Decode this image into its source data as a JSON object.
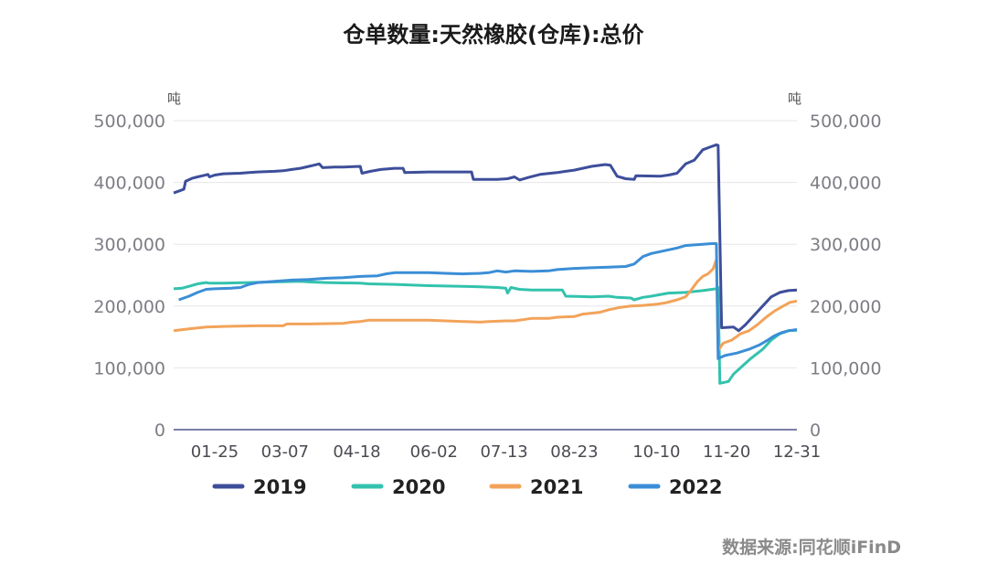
{
  "chart_data": {
    "type": "line",
    "title": "仓单数量:天然橡胶(仓库):总价",
    "unit_left": "吨",
    "unit_right": "吨",
    "ylim": [
      0,
      500000
    ],
    "y_ticks": [
      "0",
      "100,000",
      "200,000",
      "300,000",
      "400,000",
      "500,000"
    ],
    "y_tick_values": [
      0,
      100000,
      200000,
      300000,
      400000,
      500000
    ],
    "x_range": [
      1,
      365
    ],
    "x_ticks": [
      "01-25",
      "03-07",
      "04-18",
      "06-02",
      "07-13",
      "08-23",
      "10-10",
      "11-20",
      "12-31"
    ],
    "x_tick_days": [
      25,
      66,
      108,
      153,
      194,
      235,
      283,
      324,
      365
    ],
    "grid": true,
    "legend_position": "bottom",
    "series": [
      {
        "name": "2019",
        "color": "#3d4e9a",
        "points": [
          [
            1,
            383000
          ],
          [
            4,
            386000
          ],
          [
            7,
            389000
          ],
          [
            8,
            402000
          ],
          [
            12,
            407000
          ],
          [
            15,
            409000
          ],
          [
            18,
            411000
          ],
          [
            21,
            413000
          ],
          [
            22,
            409000
          ],
          [
            25,
            412000
          ],
          [
            30,
            414000
          ],
          [
            40,
            415000
          ],
          [
            45,
            416000
          ],
          [
            50,
            417000
          ],
          [
            60,
            418000
          ],
          [
            65,
            419000
          ],
          [
            70,
            421000
          ],
          [
            75,
            423000
          ],
          [
            80,
            426000
          ],
          [
            83,
            428000
          ],
          [
            86,
            430000
          ],
          [
            88,
            424000
          ],
          [
            95,
            425000
          ],
          [
            100,
            425000
          ],
          [
            110,
            426000
          ],
          [
            111,
            415000
          ],
          [
            116,
            418000
          ],
          [
            122,
            421000
          ],
          [
            130,
            423000
          ],
          [
            135,
            423000
          ],
          [
            136,
            416000
          ],
          [
            150,
            417000
          ],
          [
            175,
            417000
          ],
          [
            176,
            405000
          ],
          [
            190,
            405000
          ],
          [
            196,
            406000
          ],
          [
            200,
            409000
          ],
          [
            203,
            404000
          ],
          [
            208,
            408000
          ],
          [
            215,
            413000
          ],
          [
            225,
            416000
          ],
          [
            230,
            418000
          ],
          [
            235,
            420000
          ],
          [
            245,
            426000
          ],
          [
            253,
            429000
          ],
          [
            256,
            428000
          ],
          [
            260,
            410000
          ],
          [
            265,
            406000
          ],
          [
            270,
            405000
          ],
          [
            271,
            411000
          ],
          [
            285,
            410000
          ],
          [
            290,
            412000
          ],
          [
            295,
            415000
          ],
          [
            300,
            430000
          ],
          [
            305,
            436000
          ],
          [
            310,
            453000
          ],
          [
            315,
            458000
          ],
          [
            318,
            461000
          ],
          [
            319,
            460000
          ],
          [
            321,
            165000
          ],
          [
            328,
            166000
          ],
          [
            331,
            160000
          ],
          [
            335,
            170000
          ],
          [
            340,
            185000
          ],
          [
            345,
            200000
          ],
          [
            350,
            215000
          ],
          [
            355,
            222000
          ],
          [
            360,
            225000
          ],
          [
            365,
            226000
          ]
        ]
      },
      {
        "name": "2020",
        "color": "#33c2ad",
        "points": [
          [
            1,
            228000
          ],
          [
            6,
            229000
          ],
          [
            10,
            232000
          ],
          [
            15,
            236000
          ],
          [
            20,
            238000
          ],
          [
            22,
            237000
          ],
          [
            30,
            237000
          ],
          [
            45,
            238000
          ],
          [
            60,
            239000
          ],
          [
            75,
            240000
          ],
          [
            80,
            239000
          ],
          [
            90,
            238000
          ],
          [
            110,
            237000
          ],
          [
            115,
            236000
          ],
          [
            130,
            235000
          ],
          [
            150,
            233000
          ],
          [
            170,
            232000
          ],
          [
            180,
            231000
          ],
          [
            190,
            230000
          ],
          [
            195,
            229000
          ],
          [
            196,
            221000
          ],
          [
            198,
            230000
          ],
          [
            203,
            227000
          ],
          [
            210,
            226000
          ],
          [
            220,
            226000
          ],
          [
            228,
            226000
          ],
          [
            230,
            216000
          ],
          [
            245,
            215000
          ],
          [
            255,
            216000
          ],
          [
            260,
            214000
          ],
          [
            268,
            213000
          ],
          [
            270,
            210000
          ],
          [
            275,
            214000
          ],
          [
            280,
            216000
          ],
          [
            290,
            221000
          ],
          [
            300,
            222000
          ],
          [
            310,
            225000
          ],
          [
            318,
            228000
          ],
          [
            319,
            230000
          ],
          [
            320,
            75000
          ],
          [
            325,
            78000
          ],
          [
            328,
            90000
          ],
          [
            332,
            100000
          ],
          [
            338,
            115000
          ],
          [
            345,
            130000
          ],
          [
            350,
            145000
          ],
          [
            355,
            155000
          ],
          [
            360,
            160000
          ],
          [
            365,
            161000
          ]
        ]
      },
      {
        "name": "2021",
        "color": "#f2a35a",
        "points": [
          [
            1,
            160000
          ],
          [
            10,
            163000
          ],
          [
            20,
            166000
          ],
          [
            30,
            167000
          ],
          [
            50,
            168000
          ],
          [
            65,
            168000
          ],
          [
            67,
            171000
          ],
          [
            80,
            171000
          ],
          [
            100,
            172000
          ],
          [
            105,
            174000
          ],
          [
            110,
            175000
          ],
          [
            115,
            177000
          ],
          [
            130,
            177000
          ],
          [
            150,
            177000
          ],
          [
            160,
            176000
          ],
          [
            170,
            175000
          ],
          [
            180,
            174000
          ],
          [
            185,
            175000
          ],
          [
            195,
            176000
          ],
          [
            200,
            176000
          ],
          [
            205,
            178000
          ],
          [
            210,
            180000
          ],
          [
            220,
            180000
          ],
          [
            225,
            182000
          ],
          [
            235,
            183000
          ],
          [
            240,
            187000
          ],
          [
            250,
            190000
          ],
          [
            255,
            194000
          ],
          [
            262,
            198000
          ],
          [
            268,
            200000
          ],
          [
            275,
            201000
          ],
          [
            283,
            203000
          ],
          [
            288,
            205000
          ],
          [
            295,
            210000
          ],
          [
            300,
            215000
          ],
          [
            303,
            225000
          ],
          [
            307,
            240000
          ],
          [
            310,
            248000
          ],
          [
            313,
            252000
          ],
          [
            316,
            260000
          ],
          [
            318,
            275000
          ],
          [
            319,
            128000
          ],
          [
            322,
            140000
          ],
          [
            327,
            145000
          ],
          [
            332,
            155000
          ],
          [
            337,
            160000
          ],
          [
            342,
            170000
          ],
          [
            347,
            182000
          ],
          [
            352,
            192000
          ],
          [
            357,
            200000
          ],
          [
            361,
            206000
          ],
          [
            365,
            208000
          ]
        ]
      },
      {
        "name": "2022",
        "color": "#3b8ed6",
        "points": [
          [
            4,
            210000
          ],
          [
            10,
            216000
          ],
          [
            15,
            222000
          ],
          [
            20,
            227000
          ],
          [
            25,
            228000
          ],
          [
            35,
            229000
          ],
          [
            40,
            230000
          ],
          [
            45,
            235000
          ],
          [
            50,
            238000
          ],
          [
            60,
            240000
          ],
          [
            70,
            242000
          ],
          [
            80,
            243000
          ],
          [
            90,
            245000
          ],
          [
            100,
            246000
          ],
          [
            110,
            248000
          ],
          [
            120,
            249000
          ],
          [
            125,
            252000
          ],
          [
            130,
            254000
          ],
          [
            150,
            254000
          ],
          [
            160,
            253000
          ],
          [
            170,
            252000
          ],
          [
            180,
            253000
          ],
          [
            185,
            254000
          ],
          [
            190,
            257000
          ],
          [
            195,
            255000
          ],
          [
            200,
            257000
          ],
          [
            210,
            256000
          ],
          [
            220,
            257000
          ],
          [
            225,
            259000
          ],
          [
            235,
            261000
          ],
          [
            245,
            262000
          ],
          [
            255,
            263000
          ],
          [
            265,
            264000
          ],
          [
            270,
            268000
          ],
          [
            275,
            280000
          ],
          [
            280,
            285000
          ],
          [
            285,
            288000
          ],
          [
            290,
            291000
          ],
          [
            295,
            294000
          ],
          [
            300,
            298000
          ],
          [
            305,
            299000
          ],
          [
            310,
            300000
          ],
          [
            315,
            301000
          ],
          [
            318,
            301000
          ],
          [
            319,
            115000
          ],
          [
            323,
            120000
          ],
          [
            330,
            124000
          ],
          [
            337,
            130000
          ],
          [
            343,
            137000
          ],
          [
            348,
            145000
          ],
          [
            352,
            152000
          ],
          [
            356,
            157000
          ],
          [
            360,
            160000
          ],
          [
            365,
            162000
          ]
        ]
      }
    ]
  },
  "source_text": "数据来源:同花顺iFinD"
}
